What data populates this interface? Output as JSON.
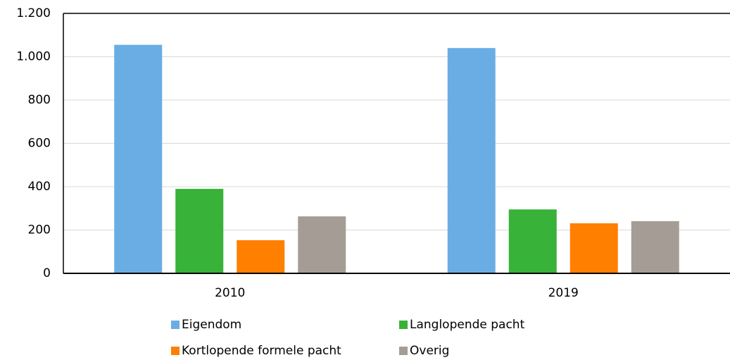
{
  "chart_data": {
    "type": "bar",
    "categories": [
      "2010",
      "2019"
    ],
    "series": [
      {
        "name": "Eigendom",
        "color": "#6aade4",
        "values": [
          1055,
          1040
        ]
      },
      {
        "name": "Langlopende pacht",
        "color": "#38b238",
        "values": [
          390,
          295
        ]
      },
      {
        "name": "Kortlopende formele pacht",
        "color": "#ff7f00",
        "values": [
          153,
          231
        ]
      },
      {
        "name": "Overig",
        "color": "#a59d95",
        "values": [
          263,
          241
        ]
      }
    ],
    "ylim": [
      0,
      1200
    ],
    "yticks": [
      0,
      200,
      400,
      600,
      800,
      {
        "value": 1000,
        "label": "1.000"
      },
      {
        "value": 1200,
        "label": "1.200"
      }
    ],
    "grid": true
  }
}
